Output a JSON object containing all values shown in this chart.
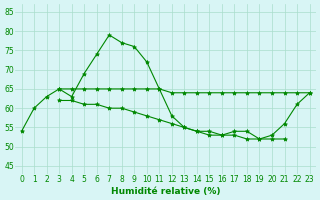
{
  "hours": [
    0,
    1,
    2,
    3,
    4,
    5,
    6,
    7,
    8,
    9,
    10,
    11,
    12,
    13,
    14,
    15,
    16,
    17,
    18,
    19,
    20,
    21,
    22,
    23
  ],
  "line1": [
    54,
    60,
    63,
    65,
    63,
    69,
    74,
    79,
    77,
    76,
    72,
    65,
    58,
    55,
    54,
    53,
    53,
    54,
    54,
    52,
    53,
    56,
    61,
    64
  ],
  "line2": [
    null,
    null,
    null,
    65,
    65,
    65,
    65,
    65,
    65,
    65,
    65,
    65,
    64,
    64,
    64,
    64,
    64,
    64,
    64,
    64,
    64,
    64,
    64,
    64
  ],
  "line3": [
    null,
    null,
    null,
    62,
    62,
    61,
    61,
    60,
    60,
    59,
    58,
    57,
    56,
    55,
    54,
    54,
    53,
    53,
    52,
    52,
    52,
    52,
    null,
    null
  ],
  "line_color": "#008800",
  "bg_color": "#d8f5f5",
  "grid_color": "#aaddcc",
  "xlabel": "Humidité relative (%)",
  "ylim": [
    43,
    87
  ],
  "xlim": [
    -0.5,
    23.5
  ],
  "yticks": [
    45,
    50,
    55,
    60,
    65,
    70,
    75,
    80,
    85
  ],
  "xticks": [
    0,
    1,
    2,
    3,
    4,
    5,
    6,
    7,
    8,
    9,
    10,
    11,
    12,
    13,
    14,
    15,
    16,
    17,
    18,
    19,
    20,
    21,
    22,
    23
  ],
  "marker_size": 3,
  "line_width": 0.8,
  "tick_fontsize": 5.5,
  "xlabel_fontsize": 6.5
}
